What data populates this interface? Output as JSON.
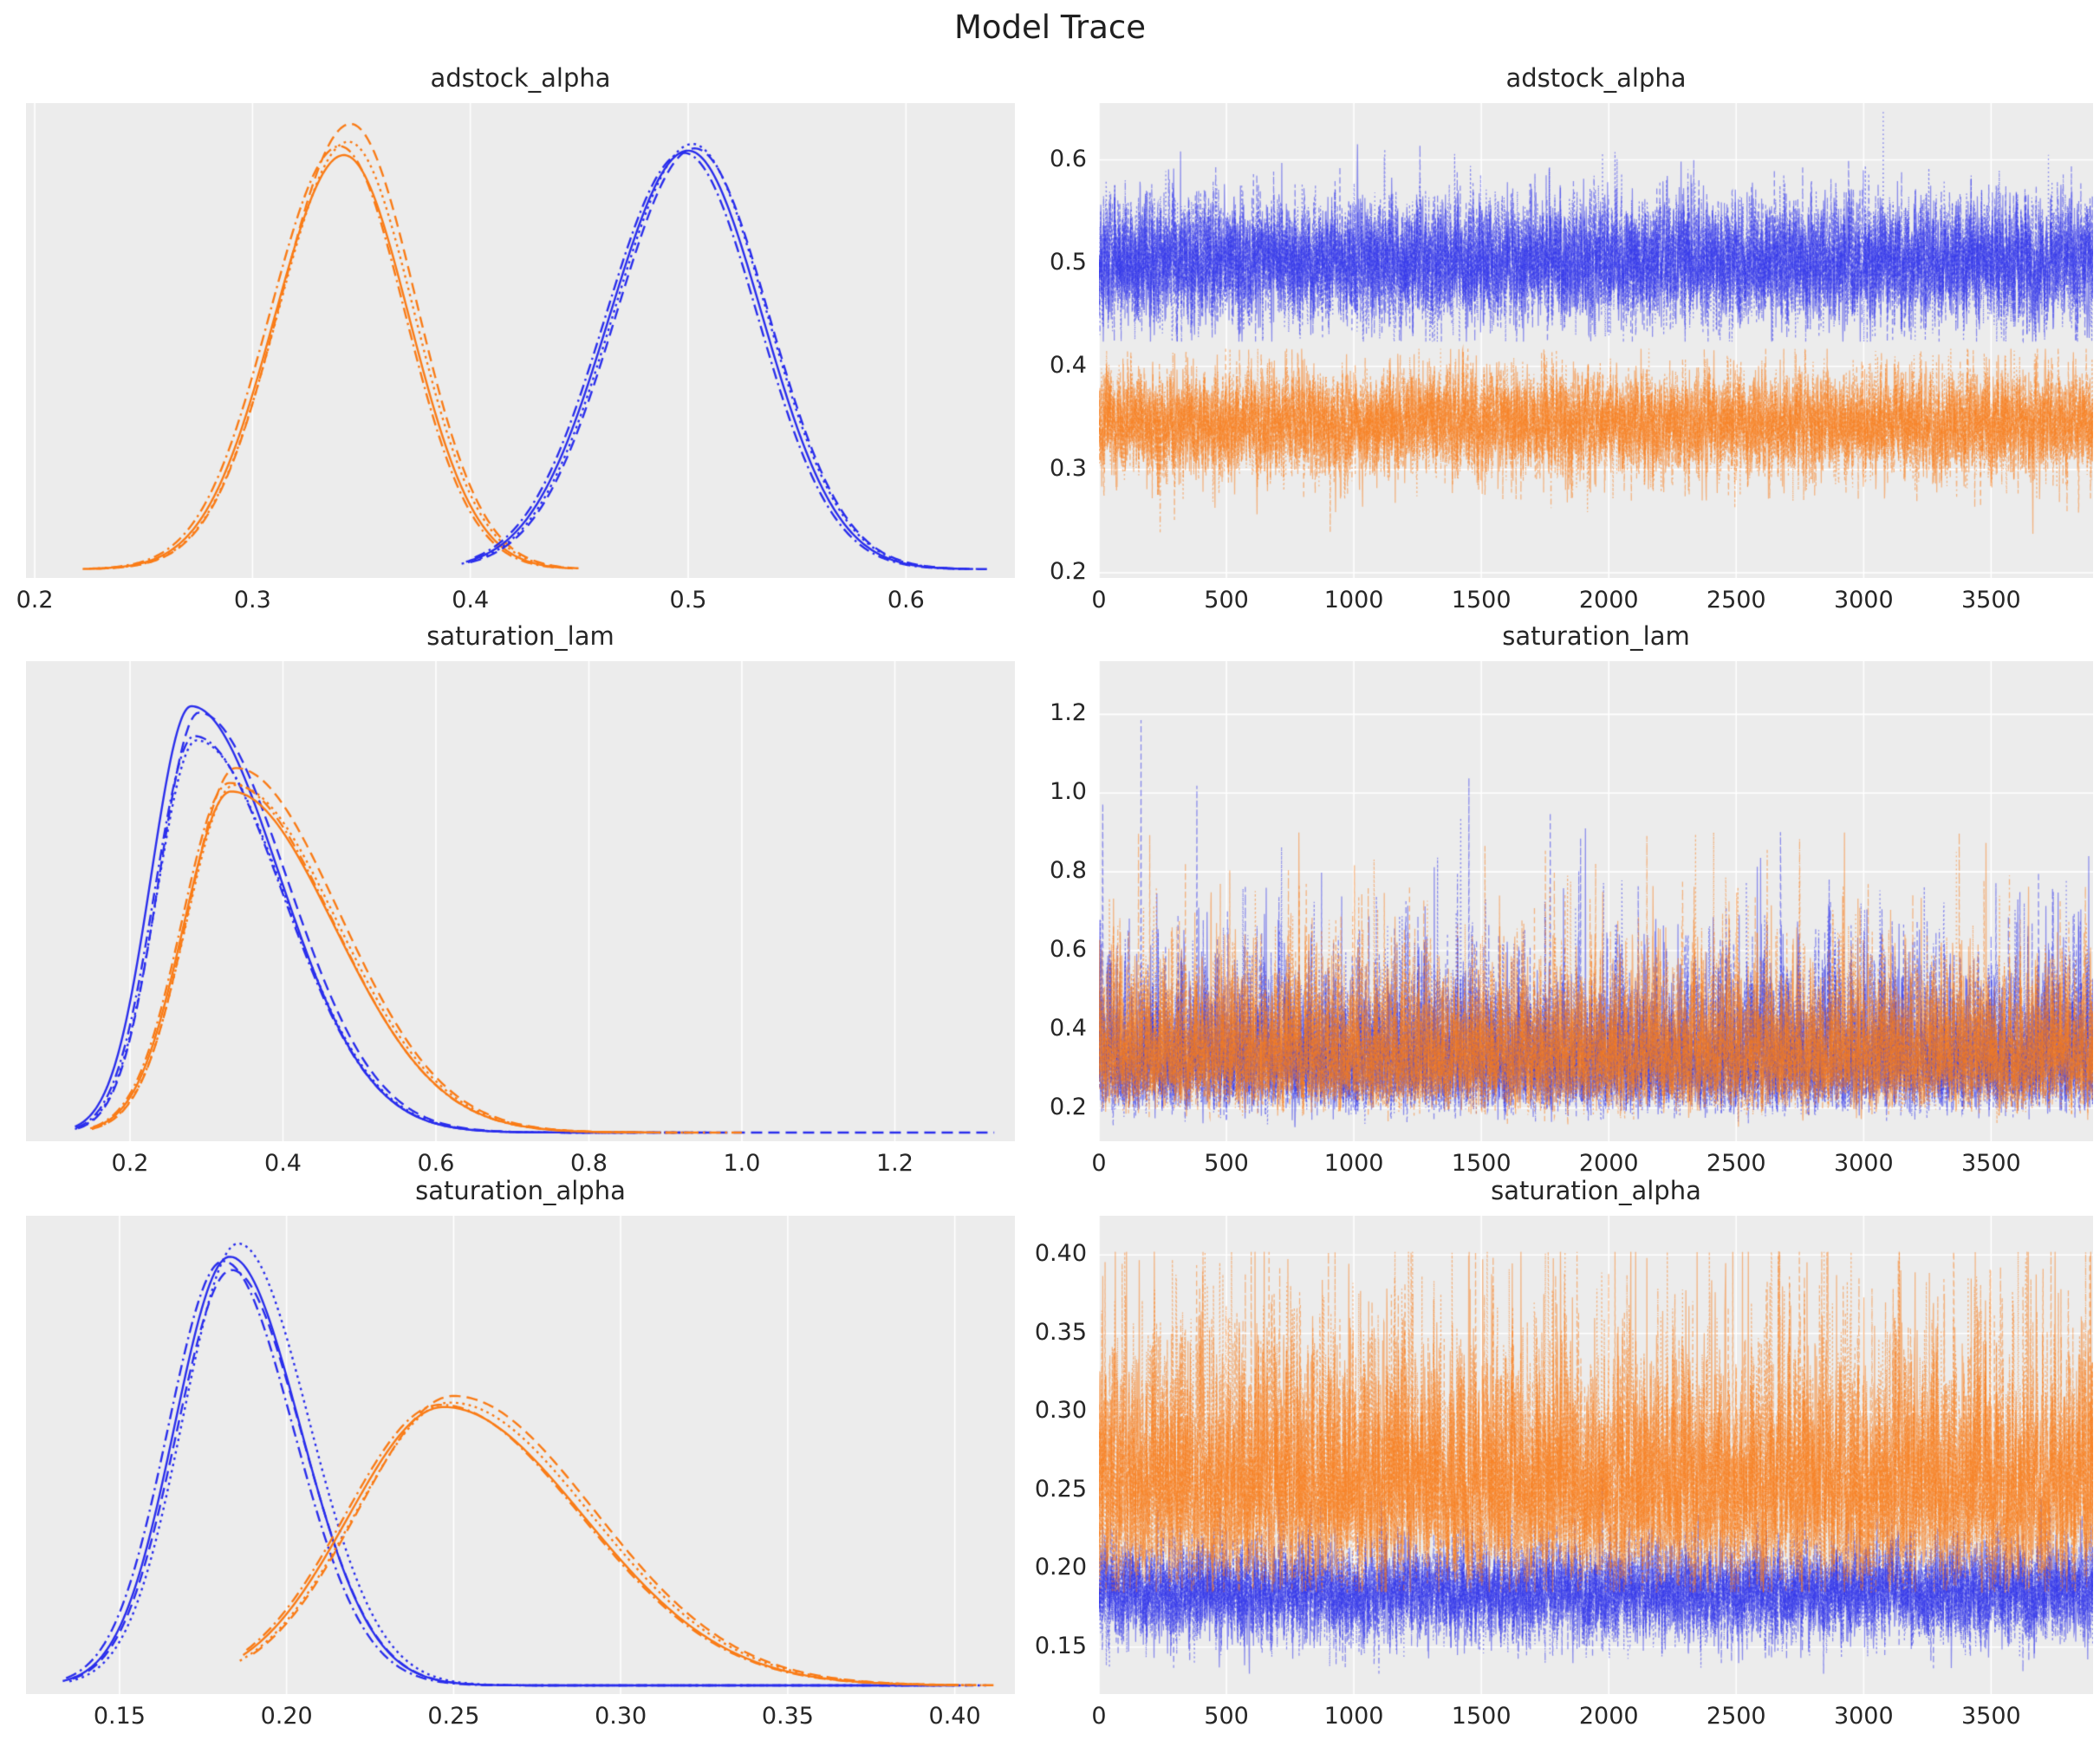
{
  "figure": {
    "title": "Model Trace",
    "colors": {
      "blue": "#2a2eec",
      "orange": "#fa7c17"
    },
    "plot_bg": "#ececec",
    "grid_color": "#ffffff",
    "text_color": "#262626",
    "chain_line_styles": [
      "solid",
      "dashed",
      "dashdot",
      "dotted"
    ],
    "chains_per_group": 4,
    "trace_alpha": 0.5
  },
  "chart_data": [
    {
      "id": "adstock_alpha_kde",
      "type": "line",
      "variant": "kde",
      "title": "adstock_alpha",
      "xlim": [
        0.196,
        0.65
      ],
      "xtick_values": [
        0.2,
        0.3,
        0.4,
        0.5,
        0.6
      ],
      "xtick_labels": [
        "0.2",
        "0.3",
        "0.4",
        "0.5",
        "0.6"
      ],
      "grid": "vertical",
      "peak_margin_top": 24,
      "groups": [
        {
          "color": "orange",
          "sigma_left": 0.032,
          "sigma_right": 0.03,
          "chains": [
            {
              "mode": 0.342,
              "peak": 0.93,
              "support": [
                0.222,
                0.447
              ]
            },
            {
              "mode": 0.345,
              "peak": 1.0,
              "support": [
                0.228,
                0.452
              ]
            },
            {
              "mode": 0.34,
              "peak": 0.95,
              "support": [
                0.225,
                0.44
              ]
            },
            {
              "mode": 0.344,
              "peak": 0.96,
              "support": [
                0.23,
                0.445
              ]
            }
          ]
        },
        {
          "color": "blue",
          "sigma_left": 0.036,
          "sigma_right": 0.034,
          "chains": [
            {
              "mode": 0.5,
              "peak": 0.94,
              "support": [
                0.398,
                0.63
              ]
            },
            {
              "mode": 0.503,
              "peak": 0.945,
              "support": [
                0.4,
                0.638
              ]
            },
            {
              "mode": 0.498,
              "peak": 0.935,
              "support": [
                0.402,
                0.625
              ]
            },
            {
              "mode": 0.502,
              "peak": 0.955,
              "support": [
                0.396,
                0.632
              ]
            }
          ]
        }
      ]
    },
    {
      "id": "adstock_alpha_trace",
      "type": "line",
      "variant": "trace",
      "title": "adstock_alpha",
      "xlim": [
        0,
        3900
      ],
      "n_draws": 3900,
      "xtick_values": [
        0,
        500,
        1000,
        1500,
        2000,
        2500,
        3000,
        3500
      ],
      "xtick_labels": [
        "0",
        "500",
        "1000",
        "1500",
        "2000",
        "2500",
        "3000",
        "3500"
      ],
      "ylim": [
        0.195,
        0.655
      ],
      "ytick_values": [
        0.2,
        0.3,
        0.4,
        0.5,
        0.6
      ],
      "ytick_labels": [
        "0.2",
        "0.3",
        "0.4",
        "0.5",
        "0.6"
      ],
      "grid": "both",
      "groups": [
        {
          "color": "blue",
          "model": "ar_normal",
          "mean": 0.502,
          "sigma": 0.0265,
          "phi": 0.45,
          "spike_prob": 0.004,
          "spike_scale": 0.05,
          "spike_dir": "both",
          "clamp": [
            0.424,
            0.649
          ],
          "seeds": [
            101,
            102,
            103,
            104
          ],
          "summary": {
            "center": 0.5,
            "typical_range": [
              0.44,
              0.57
            ],
            "extreme_range": [
              0.42,
              0.65
            ]
          }
        },
        {
          "color": "orange",
          "model": "ar_normal",
          "mean": 0.345,
          "sigma": 0.0225,
          "phi": 0.45,
          "spike_prob": 0.004,
          "spike_scale": 0.045,
          "spike_dir": "both",
          "clamp": [
            0.223,
            0.417
          ],
          "seeds": [
            111,
            112,
            113,
            114
          ],
          "summary": {
            "center": 0.345,
            "typical_range": [
              0.29,
              0.4
            ],
            "extreme_range": [
              0.22,
              0.42
            ]
          }
        }
      ]
    },
    {
      "id": "saturation_lam_kde",
      "type": "line",
      "variant": "kde",
      "title": "saturation_lam",
      "xlim": [
        0.064,
        1.357
      ],
      "xtick_values": [
        0.2,
        0.4,
        0.6,
        0.8,
        1.0,
        1.2
      ],
      "xtick_labels": [
        "0.2",
        "0.4",
        "0.6",
        "0.8",
        "1.0",
        "1.2"
      ],
      "grid": "vertical",
      "peak_margin_top": 52,
      "groups": [
        {
          "color": "blue",
          "sigma_left": 0.052,
          "sigma_right": 0.115,
          "chains": [
            {
              "mode": 0.28,
              "peak": 1.0,
              "support": [
                0.128,
                0.86
              ]
            },
            {
              "mode": 0.29,
              "peak": 0.985,
              "support": [
                0.132,
                1.33
              ]
            },
            {
              "mode": 0.284,
              "peak": 0.93,
              "support": [
                0.13,
                0.92
              ]
            },
            {
              "mode": 0.287,
              "peak": 0.92,
              "support": [
                0.128,
                0.96
              ]
            }
          ]
        },
        {
          "color": "orange",
          "sigma_left": 0.062,
          "sigma_right": 0.135,
          "chains": [
            {
              "mode": 0.332,
              "peak": 0.8,
              "support": [
                0.148,
                0.88
              ]
            },
            {
              "mode": 0.338,
              "peak": 0.855,
              "support": [
                0.15,
                0.93
              ]
            },
            {
              "mode": 0.33,
              "peak": 0.82,
              "support": [
                0.152,
                1.0
              ]
            },
            {
              "mode": 0.336,
              "peak": 0.815,
              "support": [
                0.15,
                0.86
              ]
            }
          ]
        }
      ]
    },
    {
      "id": "saturation_lam_trace",
      "type": "line",
      "variant": "trace",
      "title": "saturation_lam",
      "xlim": [
        0,
        3900
      ],
      "n_draws": 3900,
      "xtick_values": [
        0,
        500,
        1000,
        1500,
        2000,
        2500,
        3000,
        3500
      ],
      "xtick_labels": [
        "0",
        "500",
        "1000",
        "1500",
        "2000",
        "2500",
        "3000",
        "3500"
      ],
      "ylim": [
        0.116,
        1.335
      ],
      "ytick_values": [
        0.2,
        0.4,
        0.6,
        0.8,
        1.0,
        1.2
      ],
      "ytick_labels": [
        "0.2",
        "0.4",
        "0.6",
        "0.8",
        "1.0",
        "1.2"
      ],
      "grid": "both",
      "groups": [
        {
          "color": "blue",
          "model": "ar_lognormal",
          "base": 0.1,
          "scale": 0.225,
          "gsigma": 0.38,
          "phi": 0.45,
          "spike_prob": 0.0035,
          "spike_scale": 0.55,
          "spike_dir": "up",
          "clamp": [
            0.14,
            1.33
          ],
          "seeds": [
            121,
            122,
            123,
            124
          ],
          "summary": {
            "center": 0.33,
            "typical_range": [
              0.2,
              0.6
            ],
            "extreme_range": [
              0.14,
              1.33
            ]
          }
        },
        {
          "color": "orange",
          "model": "ar_lognormal",
          "base": 0.1,
          "scale": 0.235,
          "gsigma": 0.36,
          "phi": 0.45,
          "spike_prob": 0.0025,
          "spike_scale": 0.4,
          "spike_dir": "up",
          "clamp": [
            0.15,
            0.9
          ],
          "seeds": [
            131,
            132,
            133,
            134
          ],
          "summary": {
            "center": 0.335,
            "typical_range": [
              0.2,
              0.6
            ],
            "extreme_range": [
              0.15,
              0.9
            ]
          }
        }
      ]
    },
    {
      "id": "saturation_alpha_kde",
      "type": "line",
      "variant": "kde",
      "title": "saturation_alpha",
      "xlim": [
        0.122,
        0.418
      ],
      "xtick_values": [
        0.15,
        0.2,
        0.25,
        0.3,
        0.35,
        0.4
      ],
      "xtick_labels": [
        "0.15",
        "0.20",
        "0.25",
        "0.30",
        "0.35",
        "0.40"
      ],
      "grid": "vertical",
      "peak_margin_top": 32,
      "groups": [
        {
          "color": "blue",
          "sigma_left": 0.0165,
          "sigma_right": 0.021,
          "chains": [
            {
              "mode": 0.183,
              "peak": 0.97,
              "support": [
                0.133,
                0.4
              ]
            },
            {
              "mode": 0.1835,
              "peak": 0.94,
              "support": [
                0.136,
                0.405
              ]
            },
            {
              "mode": 0.181,
              "peak": 0.96,
              "support": [
                0.134,
                0.395
              ]
            },
            {
              "mode": 0.1855,
              "peak": 1.0,
              "support": [
                0.135,
                0.41
              ]
            }
          ]
        },
        {
          "color": "orange",
          "sigma_left": 0.0285,
          "sigma_right": 0.042,
          "chains": [
            {
              "mode": 0.247,
              "peak": 0.63,
              "support": [
                0.187,
                0.4
              ]
            },
            {
              "mode": 0.25,
              "peak": 0.655,
              "support": [
                0.19,
                0.412
              ]
            },
            {
              "mode": 0.246,
              "peak": 0.635,
              "support": [
                0.188,
                0.405
              ]
            },
            {
              "mode": 0.249,
              "peak": 0.64,
              "support": [
                0.186,
                0.408
              ]
            }
          ]
        }
      ]
    },
    {
      "id": "saturation_alpha_trace",
      "type": "line",
      "variant": "trace",
      "title": "saturation_alpha",
      "xlim": [
        0,
        3900
      ],
      "n_draws": 3900,
      "xtick_values": [
        0,
        500,
        1000,
        1500,
        2000,
        2500,
        3000,
        3500
      ],
      "xtick_labels": [
        "0",
        "500",
        "1000",
        "1500",
        "2000",
        "2500",
        "3000",
        "3500"
      ],
      "ylim": [
        0.12,
        0.425
      ],
      "ytick_values": [
        0.15,
        0.2,
        0.25,
        0.3,
        0.35,
        0.4
      ],
      "ytick_labels": [
        "0.15",
        "0.20",
        "0.25",
        "0.30",
        "0.35",
        "0.40"
      ],
      "grid": "both",
      "groups": [
        {
          "color": "blue",
          "model": "ar_normal",
          "mean": 0.185,
          "sigma": 0.0135,
          "phi": 0.45,
          "spike_prob": 0.0006,
          "spike_scale": 0.09,
          "spike_dir": "up",
          "clamp": [
            0.133,
            0.355
          ],
          "seeds": [
            141,
            142,
            143,
            144
          ],
          "summary": {
            "center": 0.185,
            "typical_range": [
              0.15,
              0.22
            ],
            "extreme_range": [
              0.13,
              0.35
            ]
          }
        },
        {
          "color": "orange",
          "model": "ar_lognormal",
          "base": 0.115,
          "scale": 0.138,
          "gsigma": 0.27,
          "phi": 0.45,
          "spike_prob": 0.002,
          "spike_scale": 0.32,
          "spike_dir": "up",
          "clamp": [
            0.185,
            0.402
          ],
          "seeds": [
            151,
            152,
            153,
            154
          ],
          "summary": {
            "center": 0.26,
            "typical_range": [
              0.21,
              0.33
            ],
            "extreme_range": [
              0.19,
              0.4
            ]
          }
        }
      ]
    }
  ]
}
